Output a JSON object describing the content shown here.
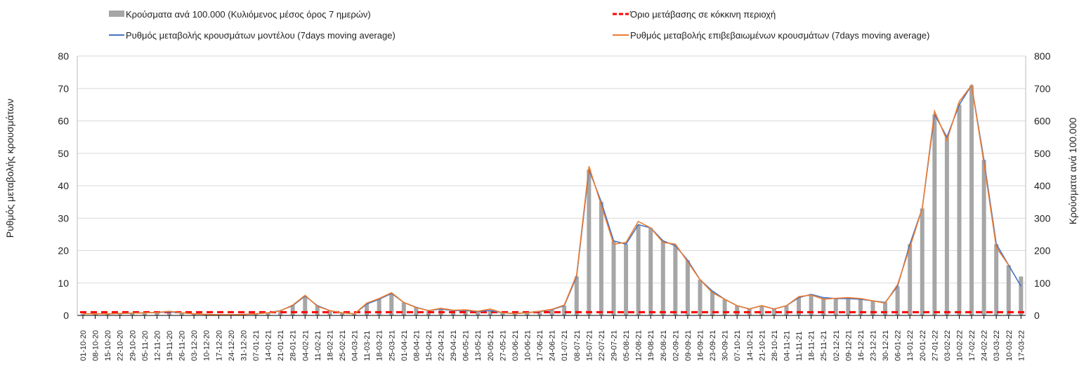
{
  "chart_data": {
    "type": "bar+line",
    "legend": {
      "bars": "Κρούσματα ανά 100.000 (Κυλιόμενος μέσος όρος 7 ημερών)",
      "threshold": "Όριο μετάβασης σε κόκκινη περιοχή",
      "model": "Ρυθμός μεταβολής κρουσμάτων μοντέλου (7days moving average)",
      "confirmed": "Ρυθμός μεταβολής επιβεβαιωμένων κρουσμάτων (7days moving average)"
    },
    "ylabel_left": "Ρυθμός μεταβολής κρουσμάτων",
    "ylabel_right": "Κρούσματα ανά 100.000",
    "ylim_left": [
      0,
      80
    ],
    "ylim_right": [
      0,
      800
    ],
    "yticks_left": [
      "0",
      "10",
      "20",
      "30",
      "40",
      "50",
      "60",
      "70",
      "80"
    ],
    "yticks_right": [
      "0",
      "100",
      "200",
      "300",
      "400",
      "500",
      "600",
      "700",
      "800"
    ],
    "grid": true,
    "threshold_left": 1,
    "colors": {
      "bars": "#a6a6a6",
      "threshold": "#ff0000",
      "model": "#4472c4",
      "confirmed": "#ed7d31"
    },
    "categories": [
      "01-10-20",
      "08-10-20",
      "15-10-20",
      "22-10-20",
      "29-10-20",
      "05-11-20",
      "12-11-20",
      "19-11-20",
      "26-11-20",
      "03-12-20",
      "10-12-20",
      "17-12-20",
      "24-12-20",
      "31-12-20",
      "07-01-21",
      "14-01-21",
      "21-01-21",
      "28-01-21",
      "04-02-21",
      "11-02-21",
      "18-02-21",
      "25-02-21",
      "04-03-21",
      "11-03-21",
      "18-03-21",
      "25-03-21",
      "01-04-21",
      "08-04-21",
      "15-04-21",
      "22-04-21",
      "29-04-21",
      "06-05-21",
      "13-05-21",
      "20-05-21",
      "27-05-21",
      "03-06-21",
      "10-06-21",
      "17-06-21",
      "24-06-21",
      "01-07-21",
      "08-07-21",
      "15-07-21",
      "22-07-21",
      "29-07-21",
      "05-08-21",
      "12-08-21",
      "19-08-21",
      "26-08-21",
      "02-09-21",
      "09-09-21",
      "16-09-21",
      "23-09-21",
      "30-09-21",
      "07-10-21",
      "14-10-21",
      "21-10-21",
      "28-10-21",
      "04-11-21",
      "11-11-21",
      "18-11-21",
      "25-11-21",
      "02-12-21",
      "09-12-21",
      "16-12-21",
      "23-12-21",
      "30-12-21",
      "06-01-22",
      "13-01-22",
      "20-01-22",
      "27-01-22",
      "03-02-22",
      "10-02-22",
      "17-02-22",
      "24-02-22",
      "03-03-22",
      "10-03-22",
      "17-03-22"
    ],
    "series": [
      {
        "name": "model",
        "axis": "left",
        "values": [
          0.5,
          0.5,
          0.5,
          0.6,
          0.7,
          0.8,
          0.9,
          1.1,
          0.8,
          0.5,
          0.3,
          0.2,
          0.2,
          0.3,
          0.5,
          0.8,
          1.5,
          3,
          6,
          3,
          1.5,
          0.8,
          0.5,
          3.5,
          5,
          6.8,
          4,
          2.5,
          1.5,
          2,
          1.5,
          1.5,
          1.2,
          1.5,
          0.8,
          0.6,
          0.8,
          1.2,
          1.8,
          3,
          12,
          45,
          35,
          23,
          22,
          28,
          27,
          23,
          21.5,
          17,
          11,
          7.5,
          5,
          3,
          2,
          3,
          2,
          3,
          5.5,
          6.5,
          5.5,
          5.2,
          5.2,
          5,
          4.5,
          4,
          9,
          22,
          33,
          62,
          55,
          65,
          71,
          48,
          22,
          15.5,
          9
        ]
      },
      {
        "name": "confirmed",
        "axis": "left",
        "values": [
          0.5,
          0.5,
          0.5,
          0.6,
          0.7,
          0.8,
          0.9,
          1.3,
          0.8,
          0.5,
          0.3,
          0.2,
          0.2,
          0.3,
          0.5,
          0.8,
          1.4,
          3.2,
          6.2,
          2.8,
          1.5,
          0.8,
          0.5,
          3.8,
          5.2,
          7,
          4,
          2.4,
          1.5,
          2.2,
          1.6,
          1.7,
          1.3,
          2,
          0.8,
          0.6,
          0.8,
          1.3,
          1.9,
          3.2,
          12.5,
          46,
          34,
          22,
          22.5,
          29,
          27,
          22.5,
          22,
          16.5,
          11,
          7,
          5,
          3,
          2,
          3,
          2,
          3,
          5.8,
          6.3,
          5,
          5.3,
          5.5,
          5.2,
          4.5,
          3.8,
          9.5,
          21,
          33,
          63,
          54,
          66,
          71,
          47,
          21,
          15.5,
          null
        ]
      },
      {
        "name": "bars",
        "axis": "right",
        "values": [
          5,
          5,
          5,
          6,
          7,
          8,
          9,
          11,
          8,
          5,
          3,
          2,
          2,
          3,
          5,
          8,
          15,
          30,
          60,
          30,
          15,
          8,
          5,
          35,
          50,
          68,
          40,
          25,
          15,
          20,
          15,
          15,
          12,
          15,
          8,
          6,
          8,
          12,
          18,
          30,
          120,
          450,
          350,
          230,
          220,
          280,
          270,
          230,
          215,
          170,
          110,
          75,
          50,
          30,
          20,
          30,
          20,
          30,
          55,
          65,
          55,
          52,
          52,
          50,
          45,
          40,
          90,
          220,
          330,
          620,
          550,
          650,
          710,
          480,
          220,
          155,
          120
        ]
      }
    ]
  }
}
